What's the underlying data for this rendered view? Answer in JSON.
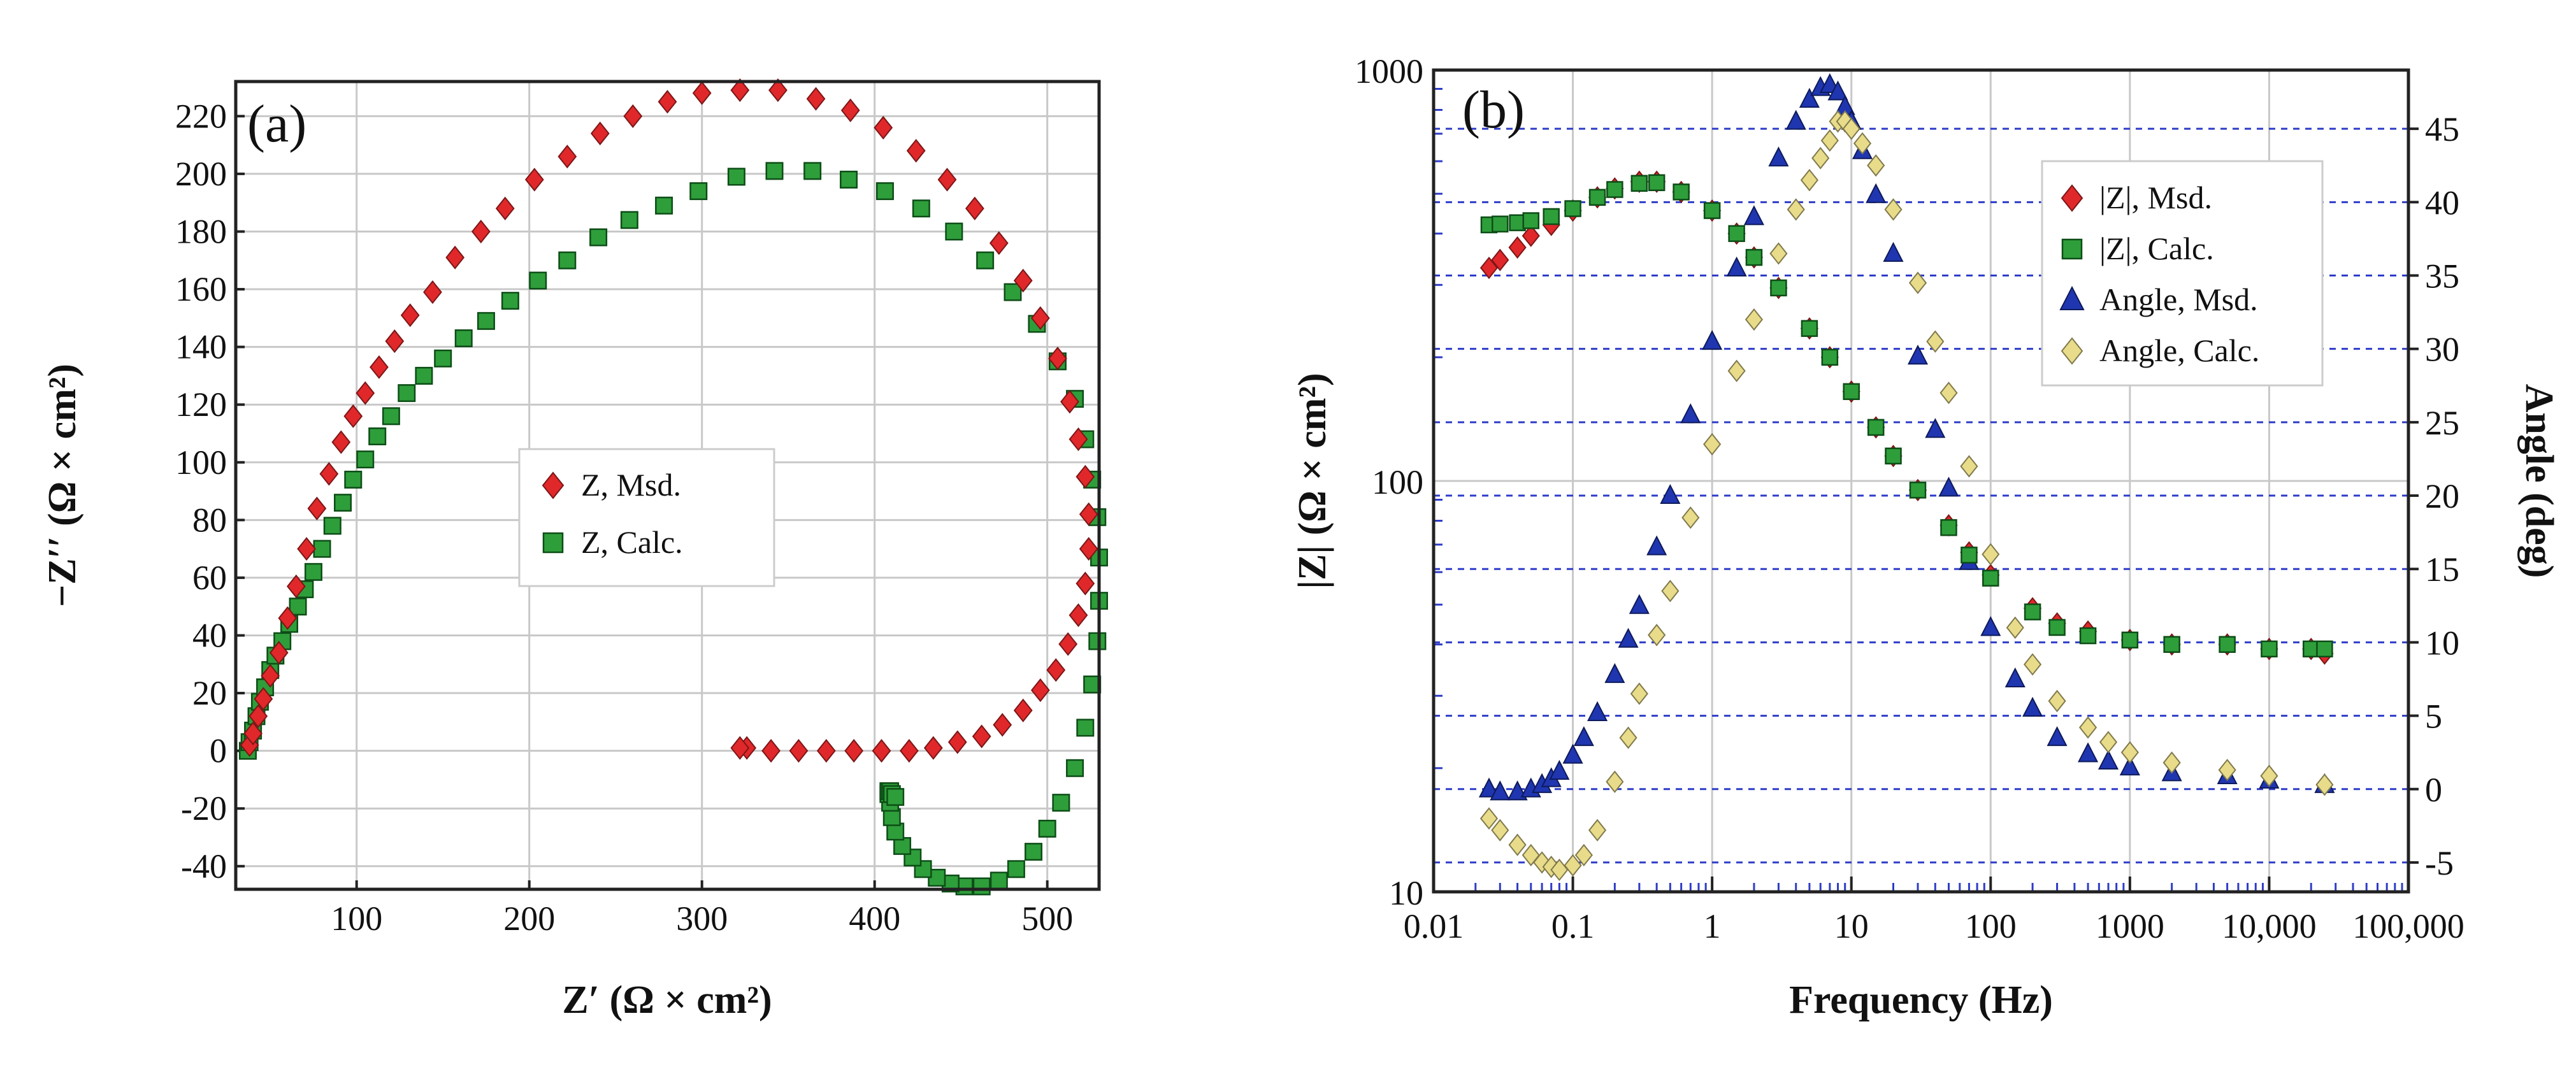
{
  "chart_data": [
    {
      "type": "scatter",
      "panel_label": "(a)",
      "xlabel": "Z′ (Ω × cm²)",
      "ylabel": "−Z′′ (Ω × cm²)",
      "xlim": [
        30,
        530
      ],
      "ylim": [
        -48,
        232
      ],
      "xticks": [
        100,
        200,
        300,
        400,
        500
      ],
      "yticks": [
        -40,
        -20,
        0,
        20,
        40,
        60,
        80,
        100,
        120,
        140,
        160,
        180,
        200,
        220
      ],
      "grid": true,
      "legend_position": "center",
      "series": [
        {
          "name": "Z, Msd.",
          "marker": "diamond",
          "color": "#e0282a",
          "x": [
            38,
            40,
            43,
            46,
            50,
            55,
            60,
            65,
            71,
            77,
            84,
            91,
            98,
            105,
            113,
            122,
            131,
            144,
            157,
            172,
            186,
            203,
            222,
            241,
            260,
            280,
            300,
            322,
            344,
            366,
            386,
            405,
            424,
            442,
            458,
            472,
            486,
            496,
            506,
            513,
            518,
            522,
            524,
            524,
            522,
            518,
            512,
            505,
            496,
            486,
            474,
            462,
            448,
            434,
            420,
            404,
            388,
            372,
            356,
            340,
            326,
            322
          ],
          "y": [
            2,
            6,
            12,
            18,
            26,
            34,
            46,
            57,
            70,
            84,
            96,
            107,
            116,
            124,
            133,
            142,
            151,
            159,
            171,
            180,
            188,
            198,
            206,
            214,
            220,
            225,
            228,
            229,
            229,
            226,
            222,
            216,
            208,
            198,
            188,
            176,
            163,
            150,
            136,
            121,
            108,
            95,
            82,
            70,
            58,
            47,
            37,
            28,
            21,
            14,
            9,
            5,
            3,
            1,
            0,
            0,
            0,
            0,
            0,
            0,
            1,
            1
          ]
        },
        {
          "name": "Z, Calc.",
          "marker": "square",
          "color": "#2e9e3a",
          "x": [
            37,
            38,
            40,
            42,
            44,
            47,
            50,
            53,
            57,
            61,
            66,
            70,
            75,
            80,
            86,
            92,
            98,
            105,
            112,
            120,
            129,
            139,
            150,
            162,
            175,
            189,
            205,
            222,
            240,
            258,
            278,
            298,
            320,
            342,
            364,
            385,
            406,
            427,
            446,
            464,
            480,
            494,
            506,
            516,
            522,
            526,
            529,
            530,
            530,
            529,
            526,
            522,
            516,
            508,
            500,
            492,
            482,
            472,
            462,
            452,
            444,
            436,
            428,
            422,
            416,
            412,
            410,
            409,
            408,
            408,
            409,
            410,
            412
          ],
          "y": [
            0,
            3,
            7,
            12,
            17,
            22,
            28,
            33,
            38,
            44,
            50,
            56,
            62,
            70,
            78,
            86,
            94,
            101,
            109,
            116,
            124,
            130,
            136,
            143,
            149,
            156,
            163,
            170,
            178,
            184,
            189,
            194,
            199,
            201,
            201,
            198,
            194,
            188,
            180,
            170,
            159,
            148,
            135,
            122,
            108,
            94,
            81,
            67,
            52,
            38,
            23,
            8,
            -6,
            -18,
            -27,
            -35,
            -41,
            -45,
            -47,
            -47,
            -46,
            -44,
            -41,
            -37,
            -33,
            -28,
            -23,
            -18,
            -15,
            -14,
            -14,
            -15,
            -16
          ]
        }
      ]
    },
    {
      "type": "scatter",
      "panel_label": "(b)",
      "xlabel": "Frequency (Hz)",
      "ylabel": "|Z| (Ω × cm²)",
      "y2label": "Angle (deg)",
      "xscale": "log",
      "yscale": "log",
      "xlim": [
        0.01,
        100000
      ],
      "ylim": [
        10,
        1000
      ],
      "y2lim": [
        -7,
        49
      ],
      "xtick_labels": [
        "0.01",
        "0.1",
        "1",
        "10",
        "100",
        "1000",
        "10,000",
        "100,000"
      ],
      "ytick_labels": [
        "10",
        "100",
        "1000"
      ],
      "y2ticks": [
        -5,
        0,
        5,
        10,
        15,
        20,
        25,
        30,
        35,
        40,
        45
      ],
      "grid": true,
      "legend_position": "top-right",
      "series": [
        {
          "name": "|Z|, Msd.",
          "marker": "diamond",
          "color": "#e0282a",
          "axis": "left",
          "x": [
            0.025,
            0.03,
            0.04,
            0.05,
            0.07,
            0.1,
            0.15,
            0.2,
            0.3,
            0.4,
            0.6,
            1,
            1.5,
            2,
            3,
            5,
            7,
            10,
            15,
            20,
            30,
            50,
            70,
            100,
            200,
            300,
            500,
            1000,
            2000,
            5000,
            10000,
            20000,
            25000
          ],
          "y": [
            330,
            345,
            370,
            395,
            420,
            455,
            490,
            515,
            535,
            535,
            505,
            455,
            400,
            350,
            295,
            235,
            200,
            165,
            135,
            115,
            95,
            78,
            67,
            59,
            49,
            45,
            43,
            41,
            40,
            40,
            39,
            39,
            38
          ]
        },
        {
          "name": "|Z|, Calc.",
          "marker": "square",
          "color": "#2e9e3a",
          "axis": "left",
          "x": [
            0.025,
            0.03,
            0.04,
            0.05,
            0.07,
            0.1,
            0.15,
            0.2,
            0.3,
            0.4,
            0.6,
            1,
            1.5,
            2,
            3,
            5,
            7,
            10,
            15,
            20,
            30,
            50,
            70,
            100,
            200,
            300,
            500,
            1000,
            2000,
            5000,
            10000,
            20000,
            25000
          ],
          "y": [
            420,
            422,
            425,
            430,
            440,
            460,
            490,
            512,
            530,
            532,
            505,
            455,
            400,
            350,
            295,
            235,
            200,
            165,
            135,
            115,
            95,
            77,
            66,
            58,
            48,
            44,
            42,
            41,
            40,
            40,
            39,
            39,
            39
          ]
        },
        {
          "name": "Angle, Msd.",
          "marker": "triangle",
          "color": "#1f36b0",
          "axis": "right",
          "x": [
            0.025,
            0.03,
            0.04,
            0.05,
            0.06,
            0.07,
            0.08,
            0.1,
            0.12,
            0.15,
            0.2,
            0.25,
            0.3,
            0.4,
            0.5,
            0.7,
            1,
            1.5,
            2,
            3,
            4,
            5,
            6,
            7,
            8,
            9,
            10,
            12,
            15,
            20,
            30,
            40,
            50,
            70,
            100,
            150,
            200,
            300,
            500,
            700,
            1000,
            2000,
            5000,
            10000,
            25000
          ],
          "y": [
            0,
            -0.2,
            -0.2,
            0,
            0.3,
            0.7,
            1.2,
            2.3,
            3.5,
            5.2,
            7.8,
            10.2,
            12.5,
            16.5,
            20,
            25.5,
            30.5,
            35.5,
            39,
            43,
            45.5,
            47,
            47.8,
            48,
            47.5,
            46.5,
            45.5,
            43.5,
            40.5,
            36.5,
            29.5,
            24.5,
            20.5,
            15.5,
            11,
            7.5,
            5.5,
            3.5,
            2.4,
            1.9,
            1.5,
            1.1,
            0.9,
            0.6,
            0.3
          ]
        },
        {
          "name": "Angle, Calc.",
          "marker": "diamond",
          "color": "#e8dc8a",
          "axis": "right",
          "x": [
            0.025,
            0.03,
            0.04,
            0.05,
            0.06,
            0.07,
            0.08,
            0.1,
            0.12,
            0.15,
            0.2,
            0.25,
            0.3,
            0.4,
            0.5,
            0.7,
            1,
            1.5,
            2,
            3,
            4,
            5,
            6,
            7,
            8,
            9,
            10,
            12,
            15,
            20,
            30,
            40,
            50,
            70,
            100,
            150,
            200,
            300,
            500,
            700,
            1000,
            2000,
            5000,
            10000,
            25000
          ],
          "y": [
            -2,
            -2.8,
            -3.8,
            -4.5,
            -5,
            -5.3,
            -5.5,
            -5.2,
            -4.5,
            -2.8,
            0.5,
            3.5,
            6.5,
            10.5,
            13.5,
            18.5,
            23.5,
            28.5,
            32,
            36.5,
            39.5,
            41.5,
            43,
            44.2,
            45.5,
            45.5,
            45,
            44,
            42.5,
            39.5,
            34.5,
            30.5,
            27,
            22,
            16,
            11,
            8.5,
            6,
            4.2,
            3.2,
            2.5,
            1.8,
            1.3,
            0.9,
            0.3
          ]
        }
      ]
    }
  ]
}
